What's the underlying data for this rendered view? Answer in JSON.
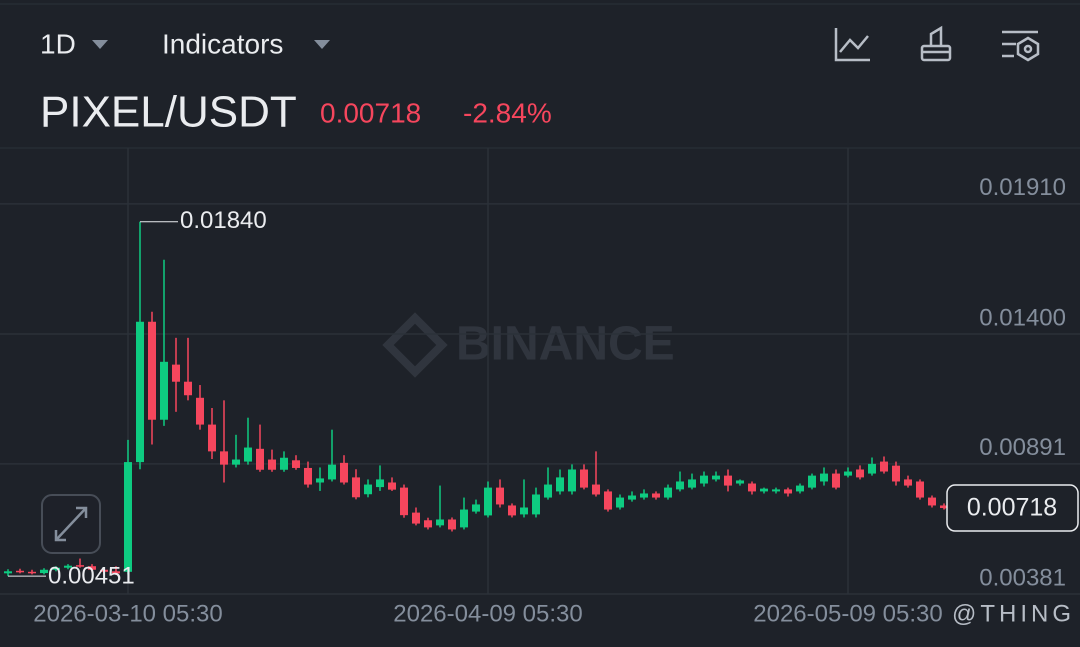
{
  "header": {
    "interval": "1D",
    "indicators": "Indicators",
    "symbol": "PIXEL/USDT",
    "price": "0.00718",
    "change": "-2.84%"
  },
  "chart_data": {
    "type": "candlestick",
    "x": [
      "2026-02-28 05:30",
      "2026-03-01 05:30",
      "2026-03-02 05:30",
      "2026-03-03 05:30",
      "2026-03-04 05:30",
      "2026-03-05 05:30",
      "2026-03-06 05:30",
      "2026-03-07 05:30",
      "2026-03-08 05:30",
      "2026-03-09 05:30",
      "2026-03-10 05:30",
      "2026-03-11 05:30",
      "2026-03-12 05:30",
      "2026-03-13 05:30",
      "2026-03-14 05:30",
      "2026-03-15 05:30",
      "2026-03-16 05:30",
      "2026-03-17 05:30",
      "2026-03-18 05:30",
      "2026-03-19 05:30",
      "2026-03-20 05:30",
      "2026-03-21 05:30",
      "2026-03-22 05:30",
      "2026-03-23 05:30",
      "2026-03-24 05:30",
      "2026-03-25 05:30",
      "2026-03-26 05:30",
      "2026-03-27 05:30",
      "2026-03-28 05:30",
      "2026-03-29 05:30",
      "2026-03-30 05:30",
      "2026-03-31 05:30",
      "2026-04-01 05:30",
      "2026-04-02 05:30",
      "2026-04-03 05:30",
      "2026-04-04 05:30",
      "2026-04-05 05:30",
      "2026-04-06 05:30",
      "2026-04-07 05:30",
      "2026-04-08 05:30",
      "2026-04-09 05:30",
      "2026-04-10 05:30",
      "2026-04-11 05:30",
      "2026-04-12 05:30",
      "2026-04-13 05:30",
      "2026-04-14 05:30",
      "2026-04-15 05:30",
      "2026-04-16 05:30",
      "2026-04-17 05:30",
      "2026-04-18 05:30",
      "2026-04-19 05:30",
      "2026-04-20 05:30",
      "2026-04-21 05:30",
      "2026-04-22 05:30",
      "2026-04-23 05:30",
      "2026-04-24 05:30",
      "2026-04-25 05:30",
      "2026-04-26 05:30",
      "2026-04-27 05:30",
      "2026-04-28 05:30",
      "2026-04-29 05:30",
      "2026-04-30 05:30",
      "2026-05-01 05:30",
      "2026-05-02 05:30",
      "2026-05-03 05:30",
      "2026-05-04 05:30",
      "2026-05-05 05:30",
      "2026-05-06 05:30",
      "2026-05-07 05:30",
      "2026-05-08 05:30",
      "2026-05-09 05:30",
      "2026-05-10 05:30",
      "2026-05-11 05:30",
      "2026-05-12 05:30",
      "2026-05-13 05:30",
      "2026-05-14 05:30",
      "2026-05-15 05:30",
      "2026-05-16 05:30",
      "2026-05-17 05:30"
    ],
    "open": [
      0.00462,
      0.00472,
      0.00468,
      0.00463,
      0.00476,
      0.00484,
      0.00494,
      0.0049,
      0.00476,
      0.0047,
      0.00468,
      0.00898,
      0.01448,
      0.01064,
      0.0128,
      0.01213,
      0.0115,
      0.01045,
      0.0094,
      0.00888,
      0.009,
      0.0095,
      0.00908,
      0.00868,
      0.00905,
      0.00875,
      0.00818,
      0.0083,
      0.00895,
      0.00838,
      0.00772,
      0.008,
      0.00818,
      0.00798,
      0.007,
      0.0067,
      0.0065,
      0.00673,
      0.00642,
      0.00704,
      0.00689,
      0.00798,
      0.00728,
      0.00693,
      0.00693,
      0.00759,
      0.00783,
      0.00783,
      0.00869,
      0.0081,
      0.00783,
      0.0072,
      0.00751,
      0.00759,
      0.00775,
      0.00759,
      0.00791,
      0.00798,
      0.00814,
      0.0083,
      0.00845,
      0.00814,
      0.00814,
      0.00783,
      0.00783,
      0.00791,
      0.00783,
      0.00798,
      0.00822,
      0.00853,
      0.00845,
      0.00869,
      0.00853,
      0.009,
      0.00884,
      0.0083,
      0.00822,
      0.00759,
      0.00728
    ],
    "high": [
      0.00478,
      0.0048,
      0.00476,
      0.00482,
      0.0049,
      0.00498,
      0.0052,
      0.00498,
      0.00482,
      0.0049,
      0.00985,
      0.0184,
      0.01487,
      0.01691,
      0.01385,
      0.01385,
      0.012,
      0.0111,
      0.0114,
      0.01005,
      0.01072,
      0.01045,
      0.00947,
      0.0094,
      0.00925,
      0.009,
      0.00877,
      0.01025,
      0.00925,
      0.0087,
      0.0083,
      0.00885,
      0.00838,
      0.0081,
      0.0072,
      0.0068,
      0.00806,
      0.00681,
      0.00759,
      0.00751,
      0.00822,
      0.0083,
      0.00736,
      0.0083,
      0.00798,
      0.00877,
      0.00869,
      0.00889,
      0.00889,
      0.0094,
      0.00791,
      0.00771,
      0.00783,
      0.00791,
      0.00783,
      0.0081,
      0.00861,
      0.00853,
      0.00861,
      0.00861,
      0.00869,
      0.0083,
      0.00822,
      0.00798,
      0.00798,
      0.00798,
      0.00814,
      0.00853,
      0.00877,
      0.00869,
      0.00877,
      0.00885,
      0.00916,
      0.0092,
      0.009,
      0.00845,
      0.0083,
      0.00767,
      0.00736
    ],
    "low": [
      0.00451,
      0.00462,
      0.00458,
      0.00458,
      0.0047,
      0.00478,
      0.00484,
      0.0047,
      0.00462,
      0.00456,
      0.00458,
      0.0087,
      0.00967,
      0.0104,
      0.01095,
      0.0114,
      0.01025,
      0.0091,
      0.00818,
      0.00877,
      0.00888,
      0.0086,
      0.0086,
      0.0086,
      0.00868,
      0.00798,
      0.00785,
      0.00822,
      0.0081,
      0.00752,
      0.0076,
      0.00785,
      0.00785,
      0.0068,
      0.0065,
      0.00634,
      0.00642,
      0.00626,
      0.00634,
      0.00696,
      0.00681,
      0.0072,
      0.00681,
      0.00681,
      0.00681,
      0.00751,
      0.00771,
      0.00771,
      0.00791,
      0.00763,
      0.00704,
      0.00712,
      0.00743,
      0.00751,
      0.00751,
      0.00751,
      0.00783,
      0.00791,
      0.00802,
      0.00822,
      0.00783,
      0.00806,
      0.00771,
      0.00775,
      0.00775,
      0.00763,
      0.00775,
      0.00791,
      0.00806,
      0.00791,
      0.00838,
      0.0083,
      0.00845,
      0.00853,
      0.00806,
      0.00798,
      0.00751,
      0.0072,
      0.00712
    ],
    "close": [
      0.0047,
      0.00466,
      0.00463,
      0.00476,
      0.00484,
      0.00492,
      0.0049,
      0.00476,
      0.00468,
      0.00462,
      0.00898,
      0.01448,
      0.01064,
      0.01291,
      0.01213,
      0.0116,
      0.01045,
      0.0094,
      0.00888,
      0.00908,
      0.00955,
      0.00868,
      0.00868,
      0.00915,
      0.00875,
      0.0081,
      0.00834,
      0.00888,
      0.00818,
      0.0076,
      0.0081,
      0.0083,
      0.0079,
      0.0069,
      0.00657,
      0.00642,
      0.00673,
      0.00634,
      0.00712,
      0.00732,
      0.00798,
      0.00732,
      0.00689,
      0.0072,
      0.00771,
      0.0081,
      0.00838,
      0.00869,
      0.00798,
      0.00771,
      0.00712,
      0.00759,
      0.00767,
      0.00775,
      0.00759,
      0.00798,
      0.00822,
      0.0083,
      0.00845,
      0.00845,
      0.00806,
      0.00826,
      0.00783,
      0.00794,
      0.00791,
      0.00775,
      0.00806,
      0.00845,
      0.00853,
      0.00798,
      0.00861,
      0.00838,
      0.00891,
      0.00861,
      0.00822,
      0.00806,
      0.00759,
      0.00728,
      0.00718
    ],
    "up_color": "#0ecb81",
    "down_color": "#f6465d",
    "xlim": [
      "2026-02-27 13:30",
      "2026-05-28 13:30"
    ],
    "xticks": [
      "2026-03-10 05:30",
      "2026-04-09 05:30",
      "2026-05-09 05:30"
    ],
    "ylim": [
      0.00381,
      0.02129
    ],
    "yticks": [
      {
        "value": 0.0191,
        "label": "0.01910"
      },
      {
        "value": 0.014,
        "label": "0.01400"
      },
      0.00891,
      0.00381
    ],
    "grid": true,
    "max_marker": {
      "value": 0.0184,
      "label": "0.01840"
    },
    "min_marker": {
      "value": 0.00451,
      "label": "0.00451"
    },
    "last_price": {
      "value": 0.00718,
      "label": "0.00718"
    },
    "watermark": "BINANCE",
    "credit": "@THING"
  }
}
